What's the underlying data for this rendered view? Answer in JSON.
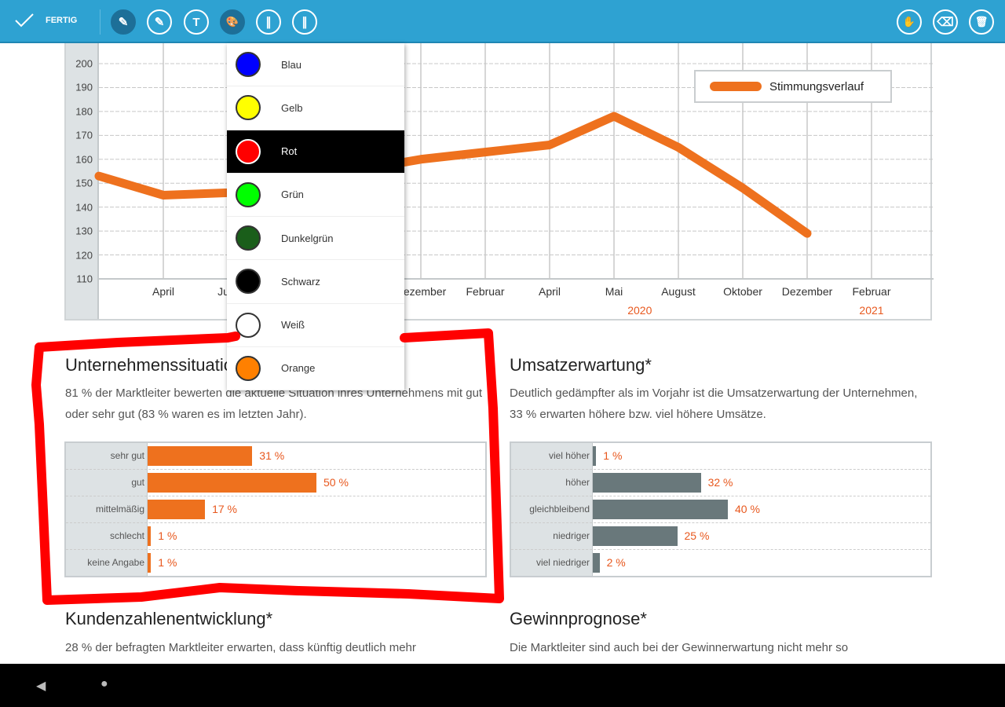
{
  "toolbar": {
    "done_label": "FERTIG",
    "tools": [
      {
        "icon": "highlighter-1-icon",
        "glyph": "✎"
      },
      {
        "icon": "highlighter-2-icon",
        "glyph": "✎"
      },
      {
        "icon": "text-icon",
        "glyph": "T"
      },
      {
        "icon": "palette-icon",
        "glyph": "🎨"
      },
      {
        "icon": "pen-1-icon",
        "glyph": "∥"
      },
      {
        "icon": "pen-2-icon",
        "glyph": "∥"
      }
    ],
    "right_tools": [
      {
        "icon": "hand-icon",
        "glyph": "✋"
      },
      {
        "icon": "eraser-icon",
        "glyph": "⌫"
      },
      {
        "icon": "trash-icon",
        "glyph": "🗑"
      }
    ]
  },
  "color_menu": {
    "selected": "Rot",
    "items": [
      {
        "label": "Blau",
        "color": "#0000ff"
      },
      {
        "label": "Gelb",
        "color": "#ffff00"
      },
      {
        "label": "Rot",
        "color": "#ff0000"
      },
      {
        "label": "Grün",
        "color": "#00ff00"
      },
      {
        "label": "Dunkelgrün",
        "color": "#1a5e1a"
      },
      {
        "label": "Schwarz",
        "color": "#000000"
      },
      {
        "label": "Weiß",
        "color": "#ffffff"
      },
      {
        "label": "Orange",
        "color": "#ff8000"
      }
    ]
  },
  "chart_data": [
    {
      "type": "line",
      "categories": [
        "",
        "April",
        "Juni",
        "",
        "",
        "Dezember",
        "Februar",
        "April",
        "Mai",
        "August",
        "Oktober",
        "Dezember",
        "Februar"
      ],
      "year_labels": [
        {
          "label": "2020",
          "after_index": 8
        },
        {
          "label": "2021",
          "at_index": 12
        }
      ],
      "series": [
        {
          "name": "Stimmungsverlauf",
          "color": "#ee711e",
          "values": [
            153,
            145,
            146,
            null,
            null,
            160,
            163,
            166,
            178,
            165,
            148,
            129,
            null
          ]
        }
      ],
      "yticks": [
        200,
        190,
        180,
        170,
        160,
        150,
        140,
        130,
        120,
        110
      ],
      "ylim": [
        110,
        200
      ],
      "grid": true,
      "legend": "top-right"
    },
    {
      "type": "bar",
      "orientation": "horizontal",
      "categories": [
        "sehr gut",
        "gut",
        "mittelmäßig",
        "schlecht",
        "keine Angabe"
      ],
      "values": [
        31,
        50,
        17,
        1,
        1
      ],
      "value_labels": [
        "31 %",
        "50 %",
        "17 %",
        "1 %",
        "1 %"
      ],
      "color": "#ee711e"
    },
    {
      "type": "bar",
      "orientation": "horizontal",
      "categories": [
        "viel höher",
        "höher",
        "gleichbleibend",
        "niedriger",
        "viel niedriger"
      ],
      "values": [
        1,
        32,
        40,
        25,
        2
      ],
      "value_labels": [
        "1 %",
        "32 %",
        "40 %",
        "25 %",
        "2 %"
      ],
      "color": "#69787b"
    }
  ],
  "sections": {
    "s1": {
      "title": "Unternehmenssituation",
      "text": "81 % der Marktleiter bewerten die aktuelle Situation ihres Unterneh­mens mit gut oder sehr gut (83 % waren es im letzten Jahr)."
    },
    "s2": {
      "title": "Umsatzerwartung*",
      "text": "Deutlich gedämpfter als im Vorjahr ist die Umsatzerwartung der Unternehmen, 33 % erwarten höhere bzw. viel höhere Umsätze."
    },
    "s3": {
      "title": "Kundenzahlenentwicklung*",
      "text": "28 % der befragten Marktleiter erwarten, dass künftig deutlich mehr"
    },
    "s4": {
      "title": "Gewinnprognose*",
      "text": "Die Marktleiter sind auch bei der Gewinnerwartung nicht mehr so"
    }
  },
  "annotation": {
    "color": "#ff0000"
  },
  "nav": {
    "back_icon": "◀",
    "home_icon": "●"
  }
}
